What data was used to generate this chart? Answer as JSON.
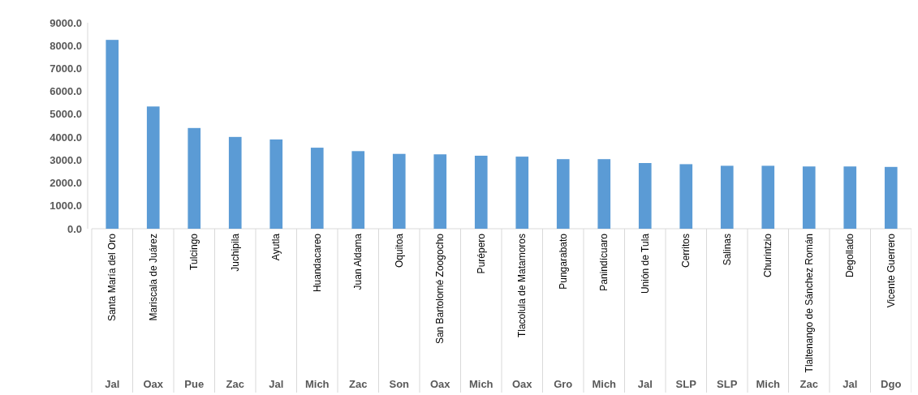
{
  "chart_data": {
    "type": "bar",
    "categories": [
      "Santa María del Oro",
      "Mariscala de Juárez",
      "Tulcingo",
      "Juchipila",
      "Ayutla",
      "Huandacareo",
      "Juan Aldama",
      "Oquitoa",
      "San Bartolomé Zoogocho",
      "Purépero",
      "Tlacolula de Matamoros",
      "Pungarabato",
      "Panindícuaro",
      "Unión de Tula",
      "Cerritos",
      "Salinas",
      "Churintzio",
      "Tlaltenango de Sánchez Román",
      "Degollado",
      "Vicente Guerrero"
    ],
    "values": [
      8250,
      5340,
      4400,
      4010,
      3900,
      3540,
      3390,
      3270,
      3250,
      3190,
      3150,
      3040,
      3040,
      2870,
      2820,
      2750,
      2750,
      2720,
      2720,
      2700
    ],
    "color": "#5b9bd5",
    "ylim": [
      0,
      9000
    ],
    "yticks": [
      {
        "value": 0,
        "label": "0.0"
      },
      {
        "value": 1000,
        "label": "1000.0"
      },
      {
        "value": 2000,
        "label": "2000.0"
      },
      {
        "value": 3000,
        "label": "3000.0"
      },
      {
        "value": 4000,
        "label": "4000.0"
      },
      {
        "value": 5000,
        "label": "5000.0"
      },
      {
        "value": 6000,
        "label": "6000.0"
      },
      {
        "value": 7000,
        "label": "7000.0"
      },
      {
        "value": 8000,
        "label": "8000.0"
      },
      {
        "value": 9000,
        "label": "9000.0"
      }
    ],
    "grid": false,
    "annotations": [
      "Jal",
      "Oax",
      "Pue",
      "Zac",
      "Jal",
      "Mich",
      "Zac",
      "Son",
      "Oax",
      "Mich",
      "Oax",
      "Gro",
      "Mich",
      "Jal",
      "SLP",
      "SLP",
      "Mich",
      "Zac",
      "Jal",
      "Dgo"
    ]
  }
}
